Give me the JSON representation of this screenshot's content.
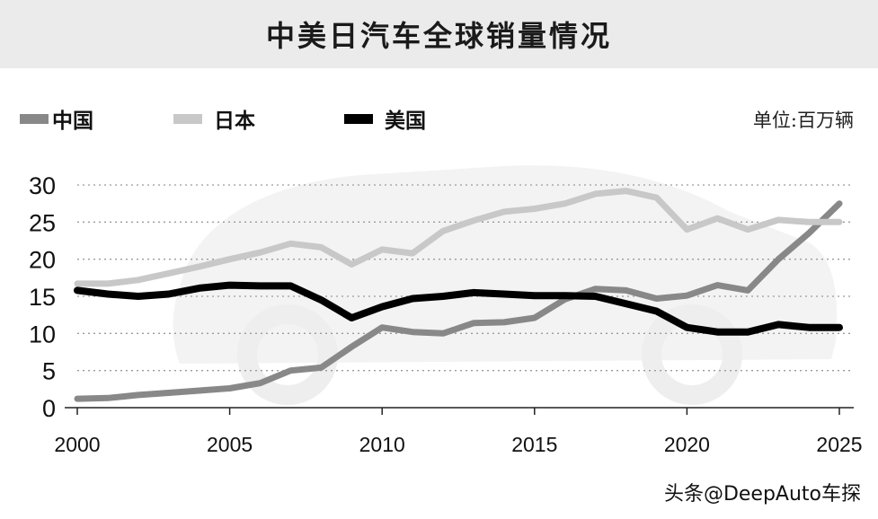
{
  "colors": {
    "china": "#888888",
    "japan": "#c8c8c8",
    "usa": "#000000",
    "title_bg": "#ebebeb",
    "car_silhouette": "#f3f3f3"
  },
  "watermark": "头条@DeepAuto车探",
  "chart_data": {
    "type": "line",
    "title": "中美日汽车全球销量情况",
    "unit": "单位:百万辆",
    "xlabel": "",
    "ylabel": "",
    "xlim": [
      2000,
      2025
    ],
    "ylim": [
      0,
      30
    ],
    "x_ticks": [
      2000,
      2005,
      2010,
      2015,
      2020,
      2025
    ],
    "y_ticks": [
      0,
      5,
      10,
      15,
      20,
      25,
      30
    ],
    "grid": "horizontal dotted",
    "legend_position": "top-left",
    "x": [
      2000,
      2001,
      2002,
      2003,
      2004,
      2005,
      2006,
      2007,
      2008,
      2009,
      2010,
      2011,
      2012,
      2013,
      2014,
      2015,
      2016,
      2017,
      2018,
      2019,
      2020,
      2021,
      2022,
      2023,
      2024,
      2025
    ],
    "series": [
      {
        "name": "中国",
        "color": "#888888",
        "values": [
          1.2,
          1.3,
          1.7,
          2.0,
          2.3,
          2.6,
          3.3,
          5.0,
          5.4,
          8.2,
          10.8,
          10.2,
          10.0,
          11.4,
          11.5,
          12.1,
          14.6,
          16.0,
          15.8,
          14.7,
          15.1,
          16.5,
          15.8,
          20.0,
          23.5,
          27.5
        ]
      },
      {
        "name": "日本",
        "color": "#c8c8c8",
        "values": [
          16.7,
          16.7,
          17.2,
          18.1,
          19.0,
          20.0,
          20.9,
          22.1,
          21.6,
          19.3,
          21.3,
          20.8,
          23.8,
          25.2,
          26.4,
          26.8,
          27.5,
          28.8,
          29.2,
          28.3,
          24.0,
          25.5,
          24.0,
          25.3,
          25.0,
          25.0
        ]
      },
      {
        "name": "美国",
        "color": "#000000",
        "values": [
          15.8,
          15.3,
          15.0,
          15.3,
          16.1,
          16.5,
          16.4,
          16.4,
          14.5,
          12.1,
          13.6,
          14.7,
          15.0,
          15.5,
          15.3,
          15.1,
          15.1,
          15.0,
          14.0,
          13.0,
          10.8,
          10.2,
          10.2,
          11.2,
          10.8,
          10.8
        ]
      }
    ]
  }
}
